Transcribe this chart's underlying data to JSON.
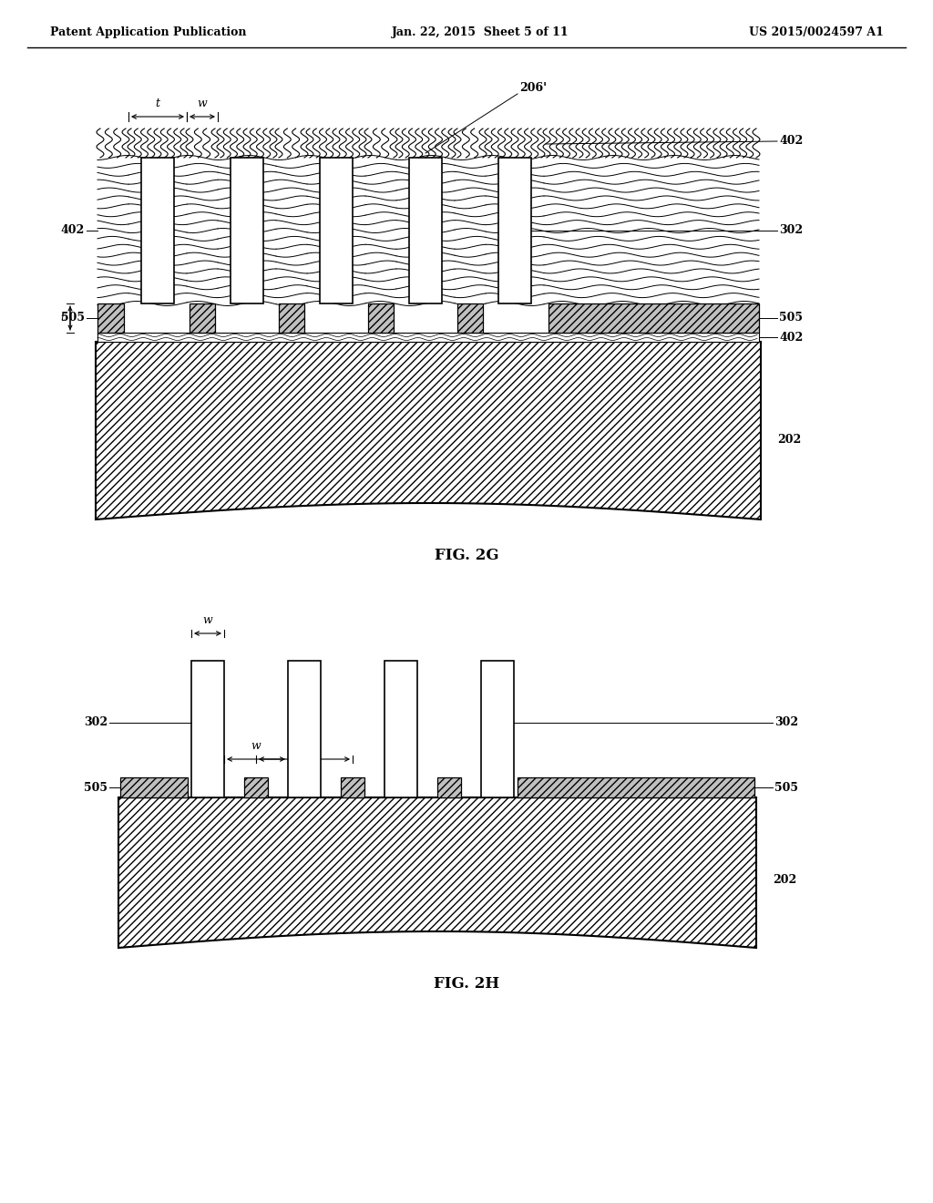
{
  "header_left": "Patent Application Publication",
  "header_mid": "Jan. 22, 2015  Sheet 5 of 11",
  "header_right": "US 2015/0024597 A1",
  "fig2g_label": "FIG. 2G",
  "fig2h_label": "FIG. 2H",
  "bg_color": "#ffffff"
}
